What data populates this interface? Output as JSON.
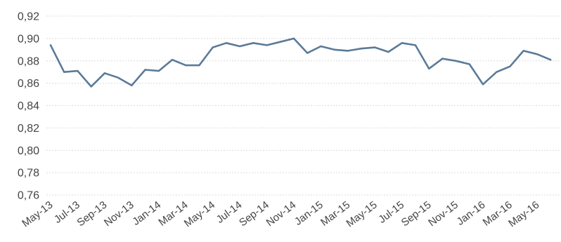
{
  "chart_data": {
    "type": "line",
    "title": "",
    "xlabel": "",
    "ylabel": "",
    "ylim": [
      0.76,
      0.92
    ],
    "y_ticks": [
      "0,92",
      "0,90",
      "0,88",
      "0,86",
      "0,84",
      "0,82",
      "0,80",
      "0,78",
      "0,76"
    ],
    "y_tick_values": [
      0.92,
      0.9,
      0.88,
      0.86,
      0.84,
      0.82,
      0.8,
      0.78,
      0.76
    ],
    "x": [
      "May-13",
      "Jun-13",
      "Jul-13",
      "Aug-13",
      "Sep-13",
      "Oct-13",
      "Nov-13",
      "Dec-13",
      "Jan-14",
      "Feb-14",
      "Mar-14",
      "Apr-14",
      "May-14",
      "Jun-14",
      "Jul-14",
      "Aug-14",
      "Sep-14",
      "Oct-14",
      "Nov-14",
      "Dec-14",
      "Jan-15",
      "Feb-15",
      "Mar-15",
      "Apr-15",
      "May-15",
      "Jun-15",
      "Jul-15",
      "Aug-15",
      "Sep-15",
      "Oct-15",
      "Nov-15",
      "Dec-15",
      "Jan-16",
      "Feb-16",
      "Mar-16",
      "Apr-16",
      "May-16",
      "Jun-16"
    ],
    "x_tick_labels": [
      "May-13",
      "Jul-13",
      "Sep-13",
      "Nov-13",
      "Jan-14",
      "Mar-14",
      "May-14",
      "Jul-14",
      "Sep-14",
      "Nov-14",
      "Jan-15",
      "Mar-15",
      "May-15",
      "Jul-15",
      "Sep-15",
      "Nov-15",
      "Jan-16",
      "Mar-16",
      "May-16"
    ],
    "series": [
      {
        "color": "#5b7a99",
        "values": [
          0.894,
          0.87,
          0.871,
          0.857,
          0.869,
          0.865,
          0.858,
          0.872,
          0.871,
          0.881,
          0.876,
          0.876,
          0.892,
          0.896,
          0.893,
          0.896,
          0.894,
          0.897,
          0.9,
          0.887,
          0.893,
          0.89,
          0.889,
          0.891,
          0.892,
          0.888,
          0.896,
          0.894,
          0.873,
          0.882,
          0.88,
          0.877,
          0.859,
          0.87,
          0.875,
          0.889,
          0.886,
          0.881
        ]
      }
    ],
    "grid": true,
    "grid_color": "#dcdcdc",
    "tick_color": "#444444",
    "legend": "none"
  }
}
